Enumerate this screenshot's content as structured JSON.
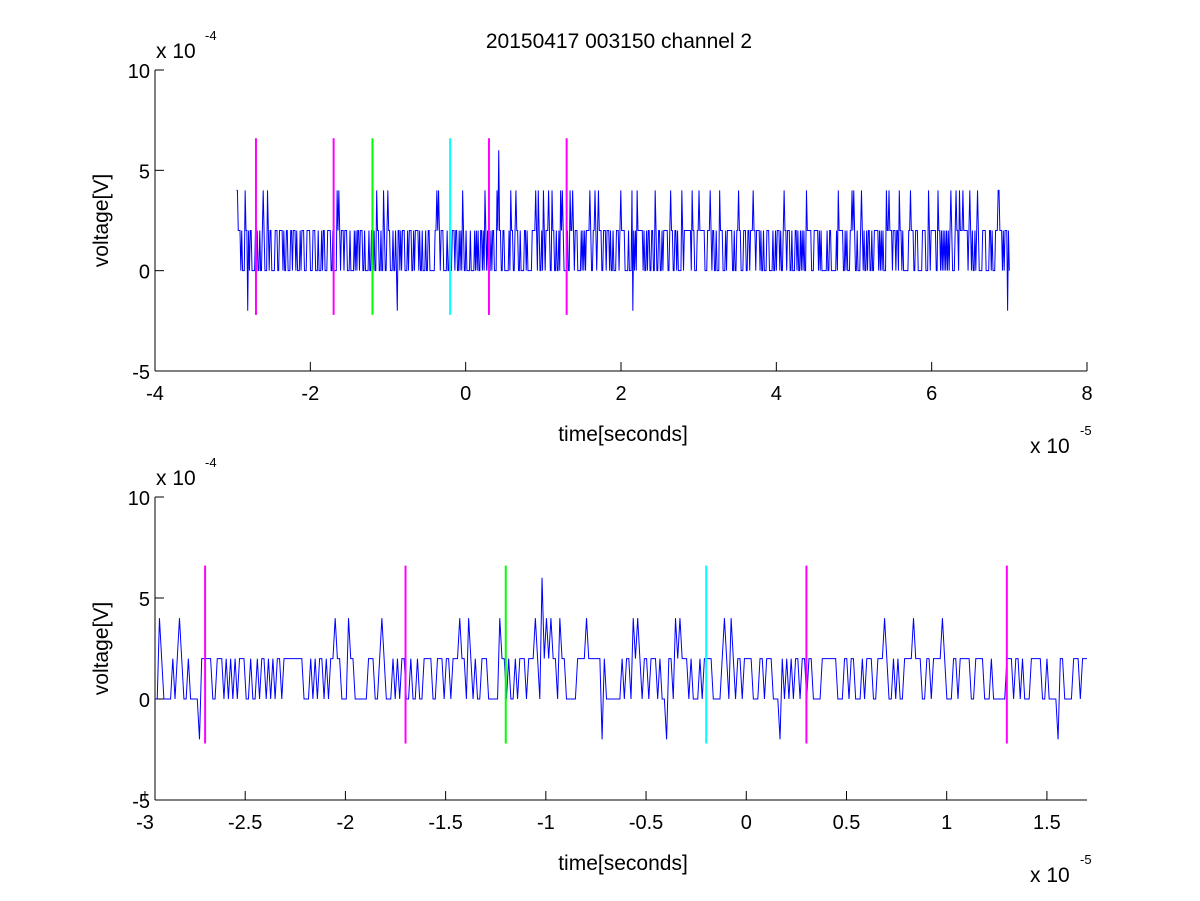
{
  "figure": {
    "title": "20150417 003150 channel 2",
    "background": "#ffffff"
  },
  "chart_data": [
    {
      "type": "line",
      "title": "20150417 003150 channel 2",
      "xlabel": "time[seconds]",
      "ylabel": "voltage[V]",
      "xlim": [
        -4,
        8
      ],
      "ylim": [
        -5,
        10
      ],
      "x_ticks": [
        -4,
        -2,
        0,
        2,
        4,
        6,
        8
      ],
      "x_tick_labels": [
        "-4",
        "-2",
        "0",
        "2",
        "4",
        "6",
        "8"
      ],
      "y_ticks": [
        -5,
        0,
        5,
        10
      ],
      "y_tick_labels": [
        "-5",
        "0",
        "5",
        "10"
      ],
      "x_multiplier": {
        "base": "x 10",
        "exponent": "-5"
      },
      "y_multiplier": {
        "base": "x 10",
        "exponent": "-4"
      },
      "grid": false,
      "series": [
        {
          "color": "#0000ff",
          "x_start": -2.95,
          "x_end": 7.0,
          "levels": [
            -2,
            0,
            2,
            4,
            6
          ],
          "dominant_levels": [
            0,
            2
          ]
        }
      ],
      "markers": [
        {
          "x": -2.7,
          "color": "#ff00ff"
        },
        {
          "x": -1.7,
          "color": "#ff00ff"
        },
        {
          "x": -1.2,
          "color": "#00ff00"
        },
        {
          "x": -0.2,
          "color": "#00ffff"
        },
        {
          "x": 0.3,
          "color": "#ff00ff"
        },
        {
          "x": 1.3,
          "color": "#ff00ff"
        }
      ],
      "marker_range": [
        -2.2,
        6.6
      ]
    },
    {
      "type": "line",
      "xlabel": "time[seconds]",
      "ylabel": "voltage[V]",
      "xlim": [
        -2.95,
        1.7
      ],
      "ylim": [
        -5,
        10
      ],
      "x_ticks": [
        -3,
        -2.5,
        -2,
        -1.5,
        -1,
        -0.5,
        0,
        0.5,
        1,
        1.5
      ],
      "x_tick_labels": [
        "-3",
        "-2.5",
        "-2",
        "-1.5",
        "-1",
        "-0.5",
        "0",
        "0.5",
        "1",
        "1.5"
      ],
      "y_ticks": [
        -5,
        0,
        5,
        10
      ],
      "y_tick_labels": [
        "-5",
        "0",
        "5",
        "10"
      ],
      "x_multiplier": {
        "base": "x 10",
        "exponent": "-5"
      },
      "y_multiplier": {
        "base": "x 10",
        "exponent": "-4"
      },
      "grid": false,
      "series": [
        {
          "color": "#0000ff",
          "x_start": -2.95,
          "x_end": 1.7,
          "levels": [
            -2,
            0,
            2,
            4,
            6
          ],
          "dominant_levels": [
            0,
            2
          ]
        }
      ],
      "markers": [
        {
          "x": -2.7,
          "color": "#ff00ff"
        },
        {
          "x": -1.7,
          "color": "#ff00ff"
        },
        {
          "x": -1.2,
          "color": "#00ff00"
        },
        {
          "x": -0.2,
          "color": "#00ffff"
        },
        {
          "x": 0.3,
          "color": "#ff00ff"
        },
        {
          "x": 1.3,
          "color": "#ff00ff"
        }
      ],
      "marker_range": [
        -2.2,
        6.6
      ]
    }
  ]
}
